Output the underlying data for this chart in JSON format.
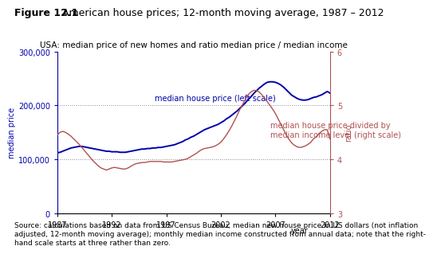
{
  "title_bold": "Figure 12.1",
  "title_normal": " American house prices; 12-month moving average, 1987 – 2012",
  "subtitle": "USA: median price of new homes and ratio median price / median income",
  "source_text": "Source: calculations based on data from US Census Bureau; median new house price in US dollars (not inflation\nadjusted, 12-month moving average); monthly median income constructed from annual data; note that the right-\nhand scale starts at three rather than zero.",
  "ylabel_left": "median price",
  "ylabel_right": "ratio",
  "title_fontsize": 9,
  "subtitle_fontsize": 7.5,
  "label_fontsize": 7,
  "tick_fontsize": 7,
  "source_fontsize": 6.5,
  "annot_fontsize": 7,
  "left_color": "#0000AA",
  "right_color": "#B05050",
  "ylim_left": [
    0,
    300000
  ],
  "ylim_right": [
    3,
    6
  ],
  "yticks_left": [
    0,
    100000,
    200000,
    300000
  ],
  "ytick_labels_left": [
    "0",
    "100,000",
    "200,000",
    "300,000"
  ],
  "yticks_right": [
    3,
    4,
    5,
    6
  ],
  "xticks": [
    1987,
    1992,
    1997,
    2002,
    2007,
    2012
  ],
  "xlim": [
    1987,
    2012
  ],
  "grid_color": "#888888",
  "annotation_left": "median house price (left scale)",
  "annotation_right": "median house price divided by\nmedian income level (right scale)",
  "ann_left_x": 2001.5,
  "ann_left_y": 210000,
  "ann_right_x": 2006.5,
  "ann_right_y": 142000,
  "house_price_years": [
    1987.0,
    1987.25,
    1987.5,
    1987.75,
    1988.0,
    1988.25,
    1988.5,
    1988.75,
    1989.0,
    1989.25,
    1989.5,
    1989.75,
    1990.0,
    1990.25,
    1990.5,
    1990.75,
    1991.0,
    1991.25,
    1991.5,
    1991.75,
    1992.0,
    1992.25,
    1992.5,
    1992.75,
    1993.0,
    1993.25,
    1993.5,
    1993.75,
    1994.0,
    1994.25,
    1994.5,
    1994.75,
    1995.0,
    1995.25,
    1995.5,
    1995.75,
    1996.0,
    1996.25,
    1996.5,
    1996.75,
    1997.0,
    1997.25,
    1997.5,
    1997.75,
    1998.0,
    1998.25,
    1998.5,
    1998.75,
    1999.0,
    1999.25,
    1999.5,
    1999.75,
    2000.0,
    2000.25,
    2000.5,
    2000.75,
    2001.0,
    2001.25,
    2001.5,
    2001.75,
    2002.0,
    2002.25,
    2002.5,
    2002.75,
    2003.0,
    2003.25,
    2003.5,
    2003.75,
    2004.0,
    2004.25,
    2004.5,
    2004.75,
    2005.0,
    2005.25,
    2005.5,
    2005.75,
    2006.0,
    2006.25,
    2006.5,
    2006.75,
    2007.0,
    2007.25,
    2007.5,
    2007.75,
    2008.0,
    2008.25,
    2008.5,
    2008.75,
    2009.0,
    2009.25,
    2009.5,
    2009.75,
    2010.0,
    2010.25,
    2010.5,
    2010.75,
    2011.0,
    2011.25,
    2011.5,
    2011.75,
    2012.0
  ],
  "house_price_values": [
    112000,
    113000,
    115000,
    117000,
    119000,
    121000,
    122000,
    123000,
    124000,
    124000,
    123000,
    122000,
    121000,
    120000,
    119000,
    118000,
    117000,
    116000,
    115000,
    115000,
    114000,
    114000,
    114000,
    113000,
    113000,
    113000,
    114000,
    115000,
    116000,
    117000,
    118000,
    119000,
    119000,
    120000,
    120000,
    121000,
    121000,
    122000,
    122000,
    123000,
    124000,
    125000,
    126000,
    127000,
    129000,
    131000,
    133000,
    136000,
    138000,
    141000,
    143000,
    146000,
    149000,
    152000,
    155000,
    157000,
    159000,
    161000,
    163000,
    165000,
    168000,
    171000,
    175000,
    178000,
    182000,
    186000,
    190000,
    195000,
    200000,
    205000,
    211000,
    216000,
    222000,
    227000,
    232000,
    236000,
    240000,
    243000,
    244000,
    244000,
    243000,
    241000,
    238000,
    234000,
    229000,
    224000,
    219000,
    216000,
    213000,
    211000,
    210000,
    210000,
    211000,
    213000,
    215000,
    216000,
    218000,
    220000,
    223000,
    226000,
    223000
  ],
  "ratio_years": [
    1987.0,
    1987.25,
    1987.5,
    1987.75,
    1988.0,
    1988.25,
    1988.5,
    1988.75,
    1989.0,
    1989.25,
    1989.5,
    1989.75,
    1990.0,
    1990.25,
    1990.5,
    1990.75,
    1991.0,
    1991.25,
    1991.5,
    1991.75,
    1992.0,
    1992.25,
    1992.5,
    1992.75,
    1993.0,
    1993.25,
    1993.5,
    1993.75,
    1994.0,
    1994.25,
    1994.5,
    1994.75,
    1995.0,
    1995.25,
    1995.5,
    1995.75,
    1996.0,
    1996.25,
    1996.5,
    1996.75,
    1997.0,
    1997.25,
    1997.5,
    1997.75,
    1998.0,
    1998.25,
    1998.5,
    1998.75,
    1999.0,
    1999.25,
    1999.5,
    1999.75,
    2000.0,
    2000.25,
    2000.5,
    2000.75,
    2001.0,
    2001.25,
    2001.5,
    2001.75,
    2002.0,
    2002.25,
    2002.5,
    2002.75,
    2003.0,
    2003.25,
    2003.5,
    2003.75,
    2004.0,
    2004.25,
    2004.5,
    2004.75,
    2005.0,
    2005.25,
    2005.5,
    2005.75,
    2006.0,
    2006.25,
    2006.5,
    2006.75,
    2007.0,
    2007.25,
    2007.5,
    2007.75,
    2008.0,
    2008.25,
    2008.5,
    2008.75,
    2009.0,
    2009.25,
    2009.5,
    2009.75,
    2010.0,
    2010.25,
    2010.5,
    2010.75,
    2011.0,
    2011.25,
    2011.5,
    2011.75,
    2012.0
  ],
  "ratio_values": [
    4.45,
    4.5,
    4.52,
    4.5,
    4.47,
    4.43,
    4.38,
    4.33,
    4.28,
    4.22,
    4.16,
    4.1,
    4.04,
    3.98,
    3.93,
    3.88,
    3.84,
    3.82,
    3.8,
    3.82,
    3.84,
    3.85,
    3.84,
    3.83,
    3.82,
    3.82,
    3.84,
    3.87,
    3.9,
    3.92,
    3.93,
    3.94,
    3.94,
    3.95,
    3.96,
    3.96,
    3.96,
    3.96,
    3.96,
    3.95,
    3.95,
    3.95,
    3.95,
    3.96,
    3.97,
    3.98,
    3.99,
    4.0,
    4.02,
    4.05,
    4.08,
    4.11,
    4.15,
    4.18,
    4.2,
    4.21,
    4.22,
    4.23,
    4.25,
    4.28,
    4.32,
    4.38,
    4.45,
    4.53,
    4.62,
    4.72,
    4.82,
    4.93,
    5.02,
    5.12,
    5.2,
    5.25,
    5.28,
    5.28,
    5.25,
    5.2,
    5.14,
    5.07,
    5.0,
    4.93,
    4.85,
    4.75,
    4.65,
    4.55,
    4.45,
    4.37,
    4.3,
    4.26,
    4.23,
    4.22,
    4.23,
    4.25,
    4.28,
    4.32,
    4.38,
    4.42,
    4.48,
    4.52,
    4.55,
    4.55,
    4.38
  ]
}
